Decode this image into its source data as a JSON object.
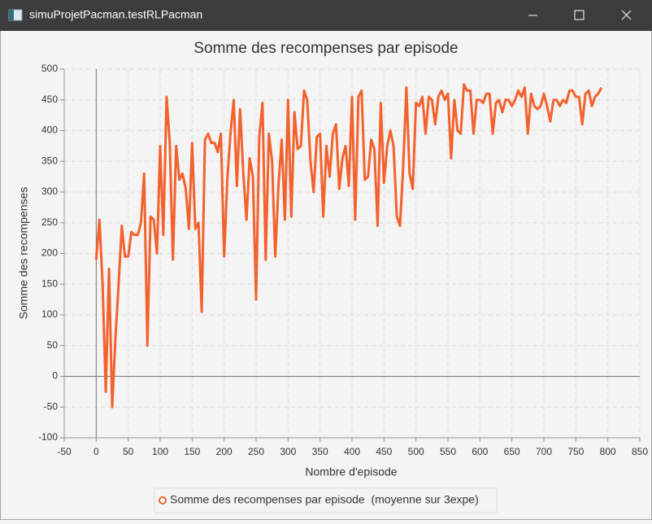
{
  "window_title": "simuProjetPacman.testRLPacman",
  "chart_data": {
    "type": "line",
    "title": "Somme des recompenses par episode",
    "x_label": "Nombre d'episode",
    "y_label": "Somme des recompenses",
    "x": [
      0,
      5,
      10,
      15,
      20,
      25,
      30,
      35,
      40,
      45,
      50,
      55,
      60,
      65,
      70,
      75,
      80,
      85,
      90,
      95,
      100,
      105,
      110,
      115,
      120,
      125,
      130,
      135,
      140,
      145,
      150,
      155,
      160,
      165,
      170,
      175,
      180,
      185,
      190,
      195,
      200,
      205,
      210,
      215,
      220,
      225,
      230,
      235,
      240,
      245,
      250,
      255,
      260,
      265,
      270,
      275,
      280,
      285,
      290,
      295,
      300,
      305,
      310,
      315,
      320,
      325,
      330,
      335,
      340,
      345,
      350,
      355,
      360,
      365,
      370,
      375,
      380,
      385,
      390,
      395,
      400,
      405,
      410,
      415,
      420,
      425,
      430,
      435,
      440,
      445,
      450,
      455,
      460,
      465,
      470,
      475,
      480,
      485,
      490,
      495,
      500,
      505,
      510,
      515,
      520,
      525,
      530,
      535,
      540,
      545,
      550,
      555,
      560,
      565,
      570,
      575,
      580,
      585,
      590,
      595,
      600,
      605,
      610,
      615,
      620,
      625,
      630,
      635,
      640,
      645,
      650,
      655,
      660,
      665,
      670,
      675,
      680,
      685,
      690,
      695,
      700,
      705,
      710,
      715,
      720,
      725,
      730,
      735,
      740,
      745,
      750,
      755,
      760,
      765,
      770,
      775,
      780,
      785,
      790
    ],
    "series": [
      {
        "name": "Somme des recompenses par episode  (moyenne sur 3expe)",
        "color": "#f3622d",
        "values": [
          190,
          255,
          150,
          -25,
          175,
          -50,
          60,
          150,
          245,
          195,
          195,
          235,
          230,
          230,
          250,
          330,
          50,
          260,
          255,
          200,
          375,
          230,
          455,
          380,
          190,
          375,
          320,
          330,
          305,
          240,
          380,
          240,
          250,
          105,
          385,
          395,
          380,
          380,
          365,
          395,
          195,
          320,
          395,
          450,
          310,
          435,
          330,
          255,
          355,
          325,
          125,
          390,
          445,
          190,
          395,
          350,
          195,
          310,
          385,
          255,
          450,
          260,
          430,
          370,
          375,
          465,
          450,
          350,
          300,
          390,
          395,
          260,
          375,
          325,
          395,
          410,
          305,
          355,
          375,
          310,
          455,
          255,
          455,
          465,
          320,
          325,
          385,
          370,
          245,
          445,
          315,
          375,
          400,
          375,
          260,
          245,
          340,
          470,
          330,
          305,
          445,
          440,
          455,
          395,
          455,
          450,
          410,
          455,
          465,
          450,
          460,
          355,
          450,
          400,
          395,
          475,
          465,
          465,
          395,
          450,
          450,
          445,
          460,
          460,
          395,
          445,
          450,
          430,
          450,
          450,
          440,
          450,
          465,
          455,
          470,
          395,
          460,
          440,
          435,
          440,
          460,
          440,
          415,
          450,
          450,
          440,
          450,
          445,
          465,
          465,
          455,
          455,
          410,
          460,
          465,
          440,
          455,
          460,
          470
        ]
      }
    ],
    "xlim": [
      -50,
      850
    ],
    "ylim": [
      -100,
      500
    ],
    "xticks": [
      -50,
      0,
      50,
      100,
      150,
      200,
      250,
      300,
      350,
      400,
      450,
      500,
      550,
      600,
      650,
      700,
      750,
      800,
      850
    ],
    "yticks": [
      -100,
      -50,
      0,
      50,
      100,
      150,
      200,
      250,
      300,
      350,
      400,
      450,
      500
    ],
    "grid": true
  }
}
